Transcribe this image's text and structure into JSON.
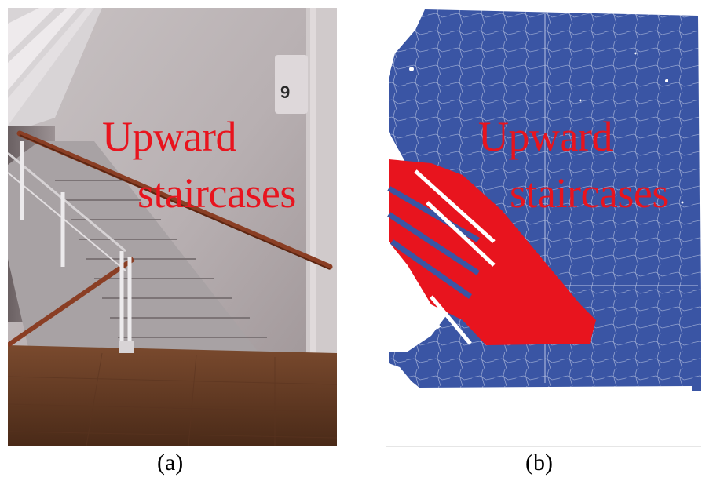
{
  "panels": [
    {
      "caption": "(a)",
      "overlay_line1": "Upward",
      "overlay_line2": "staircases",
      "content": "photograph of an indoor staircase with handrails and wooden floor",
      "sign_text": "9"
    },
    {
      "caption": "(b)",
      "overlay_line1": "Upward",
      "overlay_line2": "staircases",
      "content": "point cloud segmentation map, staircase region in red, background in blue"
    }
  ],
  "colors": {
    "overlay_text": "#e8141e",
    "pointcloud_background": "#3a55a4",
    "pointcloud_stairs": "#e8141e"
  }
}
